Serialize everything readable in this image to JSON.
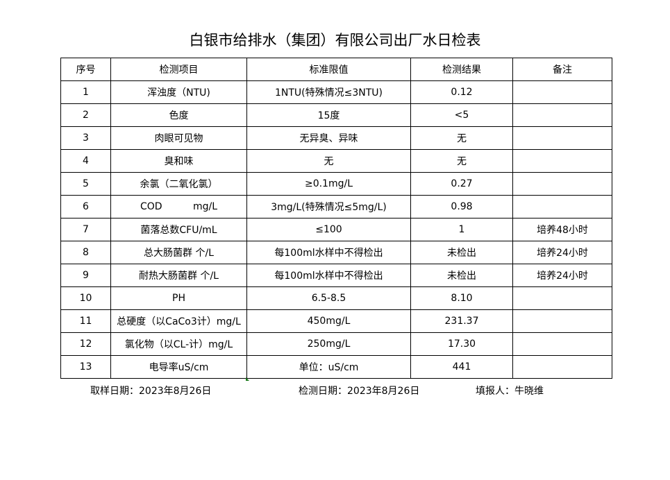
{
  "title": "白银市给排水（集团）有限公司出厂水日检表",
  "headers": [
    "序号",
    "检测项目",
    "标准限值",
    "检测结果",
    "备注"
  ],
  "rows": [
    [
      "1",
      "浑浊度（NTU)",
      "1NTU(特殊情况≤3NTU)",
      "0.12",
      ""
    ],
    [
      "2",
      "色度",
      "15度",
      "<5",
      ""
    ],
    [
      "3",
      "肉眼可见物",
      "无异臭、异味",
      "无",
      ""
    ],
    [
      "4",
      "臭和味",
      "无",
      "无",
      ""
    ],
    [
      "5",
      "余氯（二氧化氯）",
      "≥0.1mg/L",
      "0.27",
      ""
    ],
    [
      "6",
      "COD          mg/L",
      "3mg/L(特殊情况≤5mg/L)",
      "0.98",
      ""
    ],
    [
      "7",
      "菌落总数CFU/mL",
      "≤100",
      "1",
      "培养48小时"
    ],
    [
      "8",
      "总大肠菌群 个/L",
      "每100ml水样中不得检出",
      "未检出",
      "培养24小时"
    ],
    [
      "9",
      "耐热大肠菌群 个/L",
      "每100ml水样中不得检出",
      "未检出",
      "培养24小时"
    ],
    [
      "10",
      "PH",
      "6.5-8.5",
      "8.10",
      ""
    ],
    [
      "11",
      "总硬度（以CaCo3计）mg/L",
      "450mg/L",
      "231.37",
      ""
    ],
    [
      "12",
      "氯化物（以CL-计）mg/L",
      "250mg/L",
      "17.30",
      ""
    ],
    [
      "13",
      "电导率uS/cm",
      "单位：uS/cm",
      "441",
      ""
    ]
  ],
  "footer": {
    "sample_date": "取样日期：2023年8月26日",
    "test_date": "检测日期：2023年8月26日",
    "reporter": "填报人：牛晓维"
  }
}
